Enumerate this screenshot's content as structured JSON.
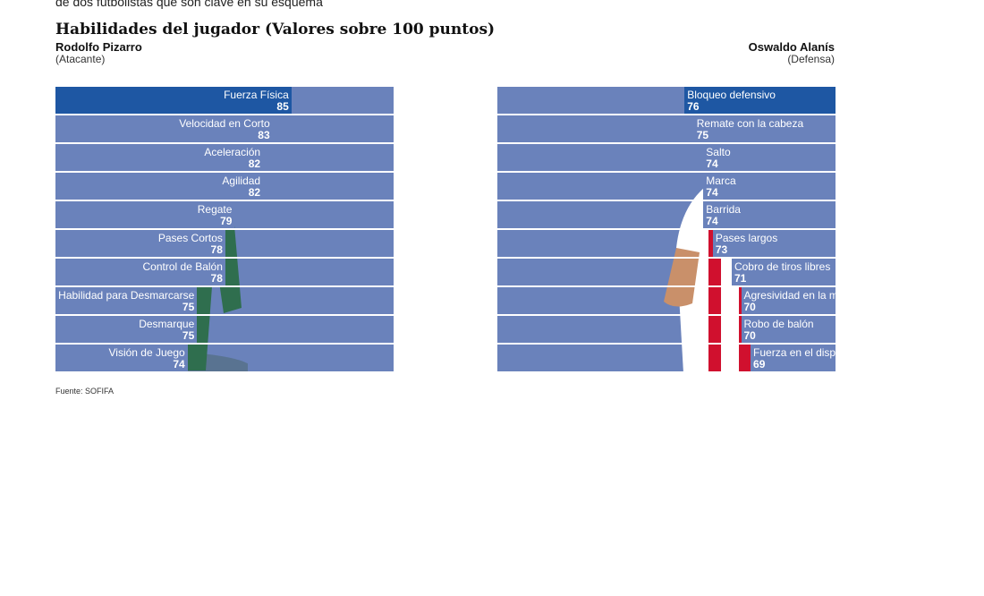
{
  "intro_text": "de dos futbolistas que son clave en su esquema",
  "title": "Habilidades del jugador (Valores sobre 100 puntos)",
  "source": "Fuente: SOFIFA",
  "colors": {
    "bar": "#6a82bb",
    "bar_highlight": "#1e57a3",
    "separator": "#ffffff"
  },
  "players": {
    "left": {
      "name": "Rodolfo Pizarro",
      "role": "(Atacante)",
      "jersey": "green-chivas-kit"
    },
    "right": {
      "name": "Oswaldo Alanís",
      "role": "(Defensa)",
      "jersey": "red-white-striped-chivas-kit"
    }
  },
  "chart_data": [
    {
      "type": "bar",
      "orientation": "horizontal",
      "player": "Rodolfo Pizarro",
      "xlim": [
        0,
        100
      ],
      "categories": [
        "Fuerza Física",
        "Velocidad en Corto",
        "Aceleración",
        "Agilidad",
        "Regate",
        "Pases Cortos",
        "Control de Balón",
        "Habilidad para Desmarcarse",
        "Desmarque",
        "Visión de Juego"
      ],
      "values": [
        85,
        83,
        82,
        82,
        79,
        78,
        78,
        75,
        75,
        74
      ]
    },
    {
      "type": "bar",
      "orientation": "horizontal",
      "player": "Oswaldo Alanís",
      "xlim": [
        0,
        100
      ],
      "categories": [
        "Bloqueo defensivo",
        "Remate con la cabeza",
        "Salto",
        "Marca",
        "Barrida",
        "Pases largos",
        "Cobro de tiros libres",
        "Agresividad en la marca",
        "Robo de balón",
        "Fuerza en el disparo"
      ],
      "values": [
        76,
        75,
        74,
        74,
        74,
        73,
        71,
        70,
        70,
        69
      ]
    }
  ]
}
